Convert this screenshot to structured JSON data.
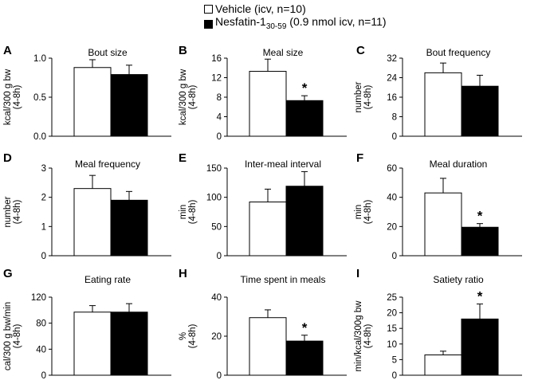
{
  "legend": {
    "vehicle": "Vehicle (icv, n=10)",
    "nesfatin_prefix": "Nesfatin-1",
    "nesfatin_sub": "30-59",
    "nesfatin_suffix": " (0.9 nmol icv, n=11)"
  },
  "colors": {
    "vehicle": "#ffffff",
    "nesfatin": "#000000",
    "axis": "#000000"
  },
  "chart_data": [
    {
      "type": "bar",
      "panel_letter": "A",
      "title": "Bout size",
      "ylabel": "kcal/300 g bw",
      "ylabel2": "(4-8h)",
      "categories": [
        "Vehicle",
        "Nesfatin-1 30-59"
      ],
      "values": [
        0.88,
        0.79
      ],
      "errors": [
        0.1,
        0.12
      ],
      "ylim": [
        0,
        1.0
      ],
      "ticks": [
        "0.0",
        "0.5",
        "1.0"
      ],
      "significance": [
        null,
        null
      ]
    },
    {
      "type": "bar",
      "panel_letter": "B",
      "title": "Meal size",
      "ylabel": "kcal/300 g bw",
      "ylabel2": "(4-8h)",
      "categories": [
        "Vehicle",
        "Nesfatin-1 30-59"
      ],
      "values": [
        13.3,
        7.3
      ],
      "errors": [
        2.5,
        1.0
      ],
      "ylim": [
        0,
        16
      ],
      "ticks": [
        "0",
        "4",
        "8",
        "12",
        "16"
      ],
      "significance": [
        null,
        "*"
      ]
    },
    {
      "type": "bar",
      "panel_letter": "C",
      "title": "Bout frequency",
      "ylabel": "number",
      "ylabel2": "(4-8h)",
      "categories": [
        "Vehicle",
        "Nesfatin-1 30-59"
      ],
      "values": [
        26.0,
        20.5
      ],
      "errors": [
        4.0,
        4.5
      ],
      "ylim": [
        0,
        32
      ],
      "ticks": [
        "0",
        "8",
        "16",
        "24",
        "32"
      ],
      "significance": [
        null,
        null
      ]
    },
    {
      "type": "bar",
      "panel_letter": "D",
      "title": "Meal frequency",
      "ylabel": "number",
      "ylabel2": "(4-8h)",
      "categories": [
        "Vehicle",
        "Nesfatin-1 30-59"
      ],
      "values": [
        2.3,
        1.9
      ],
      "errors": [
        0.45,
        0.3
      ],
      "ylim": [
        0,
        3
      ],
      "ticks": [
        "0",
        "1",
        "2",
        "3"
      ],
      "significance": [
        null,
        null
      ]
    },
    {
      "type": "bar",
      "panel_letter": "E",
      "title": "Inter-meal interval",
      "ylabel": "min",
      "ylabel2": "(4-8h)",
      "categories": [
        "Vehicle",
        "Nesfatin-1 30-59"
      ],
      "values": [
        92,
        119
      ],
      "errors": [
        22,
        25
      ],
      "ylim": [
        0,
        150
      ],
      "ticks": [
        "0",
        "50",
        "100",
        "150"
      ],
      "significance": [
        null,
        null
      ]
    },
    {
      "type": "bar",
      "panel_letter": "F",
      "title": "Meal duration",
      "ylabel": "min",
      "ylabel2": "(4-8h)",
      "categories": [
        "Vehicle",
        "Nesfatin-1 30-59"
      ],
      "values": [
        43,
        19.5
      ],
      "errors": [
        10,
        2.5
      ],
      "ylim": [
        0,
        60
      ],
      "ticks": [
        "0",
        "20",
        "40",
        "60"
      ],
      "significance": [
        null,
        "*"
      ]
    },
    {
      "type": "bar",
      "panel_letter": "G",
      "title": "Eating rate",
      "ylabel": "cal/300 g bw/min",
      "ylabel2": "(4-8h)",
      "categories": [
        "Vehicle",
        "Nesfatin-1 30-59"
      ],
      "values": [
        97,
        97
      ],
      "errors": [
        10,
        13
      ],
      "ylim": [
        0,
        120
      ],
      "ticks": [
        "0",
        "40",
        "80",
        "120"
      ],
      "significance": [
        null,
        null
      ]
    },
    {
      "type": "bar",
      "panel_letter": "H",
      "title": "Time spent in meals",
      "ylabel": "%",
      "ylabel2": "(4-8h)",
      "categories": [
        "Vehicle",
        "Nesfatin-1 30-59"
      ],
      "values": [
        29.5,
        17.5
      ],
      "errors": [
        4,
        3
      ],
      "ylim": [
        0,
        40
      ],
      "ticks": [
        "0",
        "20",
        "40"
      ],
      "significance": [
        null,
        "*"
      ]
    },
    {
      "type": "bar",
      "panel_letter": "I",
      "title": "Satiety ratio",
      "ylabel": "min/kcal/300g bw",
      "ylabel2": "(4-8h)",
      "categories": [
        "Vehicle",
        "Nesfatin-1 30-59"
      ],
      "values": [
        6.5,
        18
      ],
      "errors": [
        1.2,
        4.8
      ],
      "ylim": [
        0,
        25
      ],
      "ticks": [
        "0",
        "5",
        "10",
        "15",
        "20",
        "25"
      ],
      "significance": [
        null,
        "*"
      ]
    }
  ]
}
